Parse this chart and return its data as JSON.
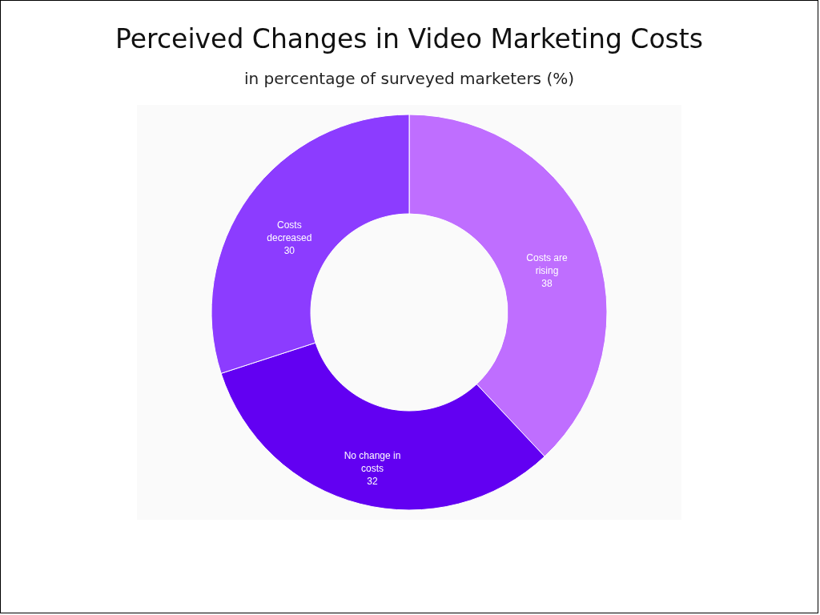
{
  "chart_data": {
    "type": "donut",
    "title": "Perceived Changes in Video Marketing Costs",
    "subtitle": "in percentage of surveyed marketers (%)",
    "categories": [
      "Costs are rising",
      "No change in costs",
      "Costs decreased"
    ],
    "values": [
      38,
      32,
      30
    ],
    "colors": [
      "#bf6eff",
      "#6200f2",
      "#8c3cff"
    ],
    "data_labels": true,
    "legend": false
  }
}
